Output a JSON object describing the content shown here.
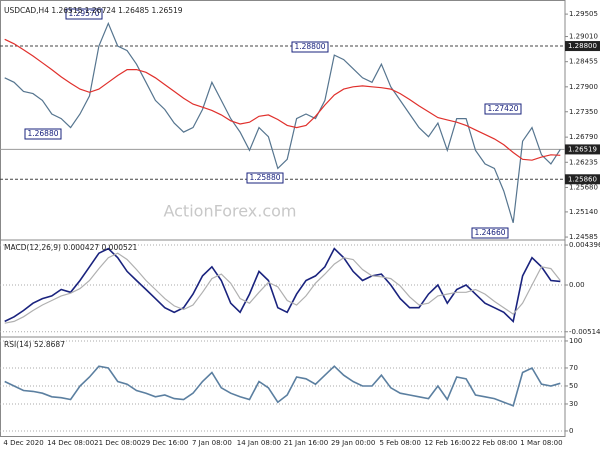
{
  "chart_data": [
    {
      "type": "line",
      "title": "USDCAD,H4  1.26515 1.26724 1.26485 1.26519",
      "watermark": "ActionForex.com",
      "ylim": [
        1.2452,
        1.2975
      ],
      "yticks": [
        {
          "value": 1.29505,
          "label": "1.29505"
        },
        {
          "value": 1.2901,
          "label": "1.29010"
        },
        {
          "value": 1.28455,
          "label": "1.28455"
        },
        {
          "value": 1.279,
          "label": "1.27900"
        },
        {
          "value": 1.2735,
          "label": "1.27350"
        },
        {
          "value": 1.2679,
          "label": "1.26790"
        },
        {
          "value": 1.26235,
          "label": "1.26235"
        },
        {
          "value": 1.2568,
          "label": "1.25680"
        },
        {
          "value": 1.2514,
          "label": "1.25140"
        },
        {
          "value": 1.24585,
          "label": "1.24585"
        }
      ],
      "grid": false,
      "levels": [
        {
          "value": 1.288,
          "label": "1.28800",
          "style": "dashed"
        },
        {
          "value": 1.26519,
          "label": "1.26519",
          "style": "solid"
        },
        {
          "value": 1.2586,
          "label": "1.25860",
          "style": "dashed"
        }
      ],
      "annotations": [
        {
          "value": 1.2957,
          "label": "1.29570"
        },
        {
          "value": 1.2688,
          "label": "1.26880"
        },
        {
          "value": 1.288,
          "label": "1.28800"
        },
        {
          "value": 1.2588,
          "label": "1.25880"
        },
        {
          "value": 1.2742,
          "label": "1.27420"
        },
        {
          "value": 1.2466,
          "label": "1.24660"
        }
      ],
      "series": [
        {
          "color": "#56758f",
          "values": [
            1.281,
            1.28,
            1.278,
            1.2775,
            1.276,
            1.273,
            1.272,
            1.27,
            1.273,
            1.277,
            1.288,
            1.293,
            1.288,
            1.287,
            1.284,
            1.28,
            1.276,
            1.274,
            1.271,
            1.269,
            1.27,
            1.274,
            1.28,
            1.276,
            1.272,
            1.269,
            1.265,
            1.27,
            1.268,
            1.261,
            1.263,
            1.272,
            1.273,
            1.272,
            1.276,
            1.286,
            1.285,
            1.283,
            1.281,
            1.28,
            1.284,
            1.279,
            1.276,
            1.273,
            1.27,
            1.268,
            1.271,
            1.265,
            1.272,
            1.272,
            1.265,
            1.262,
            1.261,
            1.256,
            1.249,
            1.267,
            1.27,
            1.264,
            1.262,
            1.2652
          ]
        },
        {
          "color": "#e0302c",
          "values": [
            1.2895,
            1.2885,
            1.2872,
            1.2858,
            1.2843,
            1.2828,
            1.2812,
            1.2798,
            1.2785,
            1.2778,
            1.2785,
            1.28,
            1.2815,
            1.2828,
            1.2828,
            1.2822,
            1.281,
            1.2795,
            1.278,
            1.2765,
            1.2752,
            1.2745,
            1.2738,
            1.2728,
            1.2715,
            1.2708,
            1.2712,
            1.2725,
            1.2728,
            1.2718,
            1.2705,
            1.27,
            1.2705,
            1.2725,
            1.275,
            1.2772,
            1.2785,
            1.279,
            1.2792,
            1.279,
            1.2788,
            1.2785,
            1.2775,
            1.2762,
            1.2748,
            1.2735,
            1.2722,
            1.2717,
            1.2712,
            1.2705,
            1.2695,
            1.2685,
            1.2675,
            1.2662,
            1.2645,
            1.263,
            1.2628,
            1.2635,
            1.264,
            1.2639
          ]
        }
      ]
    },
    {
      "type": "line",
      "title": "MACD(12,26,9) 0.000427 0.000521",
      "ylim": [
        -0.0055,
        0.00495
      ],
      "yticks": [
        0.004396,
        {
          "value": 0,
          "label": "0.00"
        },
        -0.005144
      ],
      "grid": true,
      "series": [
        {
          "color": "#1a237e",
          "values": [
            -0.004,
            -0.0035,
            -0.0028,
            -0.002,
            -0.0015,
            -0.0012,
            -0.0005,
            -0.0008,
            0.0005,
            0.002,
            0.0035,
            0.004,
            0.003,
            0.0015,
            0.0005,
            -0.0005,
            -0.0015,
            -0.0025,
            -0.003,
            -0.0025,
            -0.001,
            0.001,
            0.002,
            0.0005,
            -0.002,
            -0.003,
            -0.001,
            0.0015,
            0.0005,
            -0.0025,
            -0.003,
            -0.001,
            0.0005,
            0.001,
            0.002,
            0.004,
            0.003,
            0.0015,
            0.0005,
            0.001,
            0.0012,
            0.0,
            -0.0015,
            -0.0025,
            -0.0025,
            -0.001,
            0.0,
            -0.002,
            -0.0005,
            0.0,
            -0.001,
            -0.002,
            -0.0025,
            -0.003,
            -0.004,
            0.001,
            0.003,
            0.002,
            0.0005,
            0.0004
          ]
        },
        {
          "color": "#b0b0b0",
          "values": [
            -0.0042,
            -0.004,
            -0.0035,
            -0.0028,
            -0.0022,
            -0.0017,
            -0.0012,
            -0.0009,
            -0.0004,
            0.0005,
            0.0018,
            0.003,
            0.0035,
            0.0028,
            0.0017,
            0.0005,
            -0.0005,
            -0.0015,
            -0.0023,
            -0.0027,
            -0.0022,
            -0.0008,
            0.0007,
            0.0012,
            0.0002,
            -0.0015,
            -0.002,
            -0.0008,
            0.0003,
            -0.0002,
            -0.0017,
            -0.0022,
            -0.0012,
            0.0002,
            0.0012,
            0.0023,
            0.003,
            0.0028,
            0.0017,
            0.001,
            0.0009,
            0.0007,
            -0.0001,
            -0.0013,
            -0.0022,
            -0.002,
            -0.0012,
            -0.001,
            -0.0008,
            -0.0008,
            -0.0005,
            -0.001,
            -0.0018,
            -0.0025,
            -0.0032,
            -0.002,
            0.0,
            0.002,
            0.0018,
            0.0005
          ]
        }
      ]
    },
    {
      "type": "line",
      "title": "RSI(14) 52.8687",
      "ylim": [
        -6.7,
        104.4
      ],
      "yticks": [
        100,
        70,
        50,
        30,
        0
      ],
      "grid": true,
      "categories": [
        null,
        null,
        "4 Dec 2020",
        null,
        null,
        null,
        null,
        "14 Dec 08:00",
        null,
        null,
        null,
        null,
        "21 Dec 08:00",
        null,
        null,
        null,
        null,
        "29 Dec 16:00",
        null,
        null,
        null,
        null,
        "7 Jan 08:00",
        null,
        null,
        null,
        null,
        "14 Jan 08:00",
        null,
        null,
        null,
        null,
        "21 Jan 16:00",
        null,
        null,
        null,
        null,
        "29 Jan 00:00",
        null,
        null,
        null,
        null,
        "5 Feb 08:00",
        null,
        null,
        null,
        null,
        "12 Feb 16:00",
        null,
        null,
        null,
        null,
        "22 Feb 08:00",
        null,
        null,
        null,
        null,
        "1 Mar 08:00",
        null,
        null
      ],
      "series": [
        {
          "color": "#5b7fa0",
          "values": [
            55,
            50,
            45,
            44,
            42,
            38,
            37,
            35,
            50,
            60,
            72,
            70,
            55,
            52,
            45,
            42,
            38,
            40,
            36,
            35,
            42,
            55,
            65,
            48,
            42,
            38,
            35,
            55,
            48,
            32,
            40,
            60,
            58,
            52,
            62,
            72,
            62,
            55,
            50,
            50,
            62,
            48,
            42,
            40,
            38,
            36,
            50,
            35,
            60,
            58,
            40,
            38,
            36,
            32,
            28,
            65,
            70,
            52,
            50,
            53
          ]
        }
      ]
    }
  ]
}
